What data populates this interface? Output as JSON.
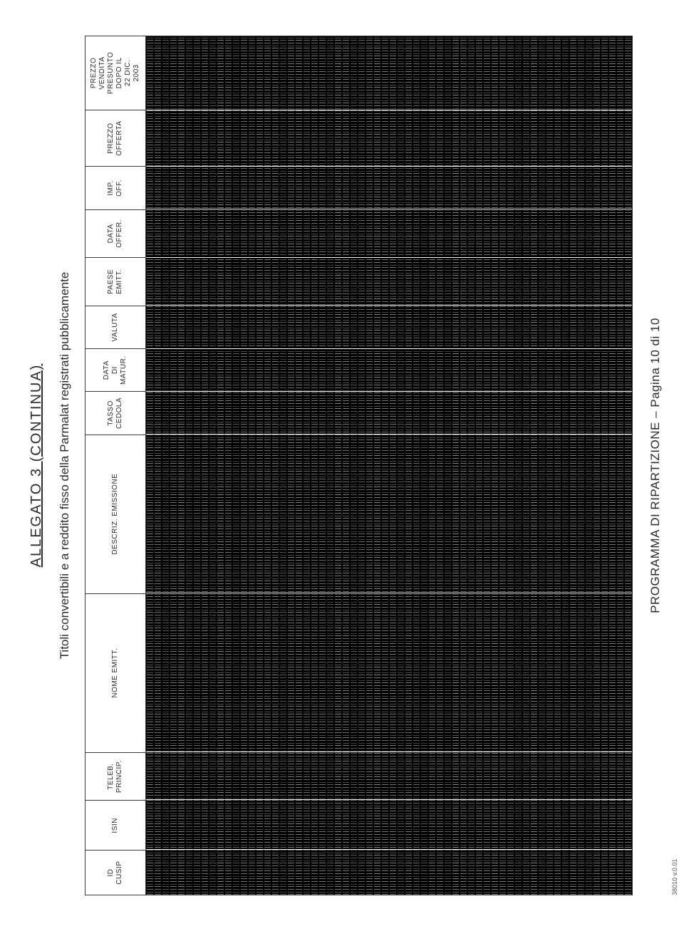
{
  "title": "ALLEGATO 3 (CONTINUA)",
  "subtitle": "Titoli convertibili e a reddito fisso della Parmalat registrati pubblicamente",
  "footer": "PROGRAMMA DI RIPARTIZIONE – Pagina 10 di 10",
  "doc_id": "38010 v.0.01",
  "table": {
    "note": "Data body is an illegible/degraded scan; cell values cannot be read from the image. Only column headers and their relative widths are recoverable.",
    "columns": [
      {
        "label": "ID\nCUSIP",
        "width_pct": 5.2
      },
      {
        "label": "ISIN",
        "width_pct": 5.8
      },
      {
        "label": "TELEB.\nPRINCIP.",
        "width_pct": 5.6
      },
      {
        "label": "NOME EMITT.",
        "width_pct": 18.5
      },
      {
        "label": "DESCRIZ. EMISSIONE",
        "width_pct": 18.5
      },
      {
        "label": "TASSO\nCEDOLA",
        "width_pct": 5.0
      },
      {
        "label": "DATA\nDI\nMATUR.",
        "width_pct": 5.0
      },
      {
        "label": "VALUTA",
        "width_pct": 5.0
      },
      {
        "label": "PAESE\nEMITT.",
        "width_pct": 5.6
      },
      {
        "label": "DATA\nOFFER.",
        "width_pct": 5.6
      },
      {
        "label": "IMP.\nOFF.",
        "width_pct": 5.0
      },
      {
        "label": "PREZZO\nOFFERTA",
        "width_pct": 6.6
      },
      {
        "label": "PREZZO\nVENDITA\nPRESUNTO\nDOPO IL\n22 DIC.\n2003",
        "width_pct": 8.6
      }
    ],
    "approx_row_count": 62,
    "colors": {
      "page_bg": "#ffffff",
      "text": "#2c2c2c",
      "border": "#3a3a3a",
      "data_bg": "#000000",
      "data_noise": "#d9d9d9"
    }
  }
}
